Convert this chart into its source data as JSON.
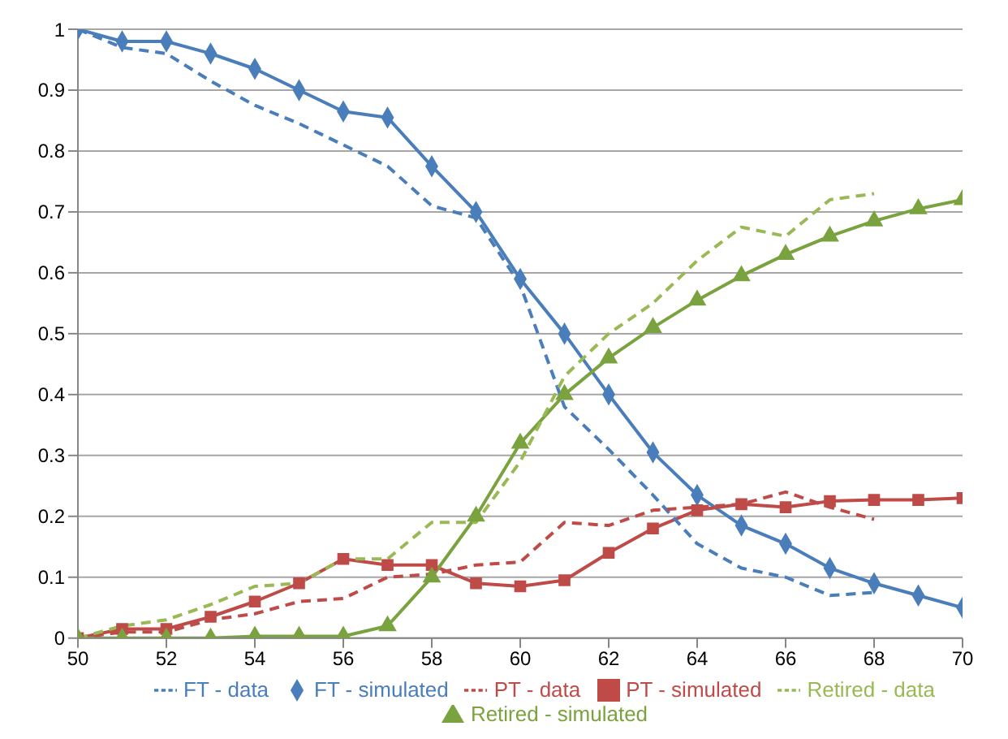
{
  "chart_data": {
    "type": "line",
    "x": [
      50,
      51,
      52,
      53,
      54,
      55,
      56,
      57,
      58,
      59,
      60,
      61,
      62,
      63,
      64,
      65,
      66,
      67,
      68,
      69,
      70
    ],
    "xlim": [
      50,
      70
    ],
    "xticks": [
      50,
      52,
      54,
      56,
      58,
      60,
      62,
      64,
      66,
      68,
      70
    ],
    "ylim": [
      0,
      1
    ],
    "yticks": [
      0,
      0.1,
      0.2,
      0.3,
      0.4,
      0.5,
      0.6,
      0.7,
      0.8,
      0.9,
      1
    ],
    "grid": "y",
    "legend": "bottom",
    "series": [
      {
        "name": "FT - simulated",
        "color": "#4a7ebb",
        "marker": "diamond",
        "line_style": "solid",
        "values": [
          1,
          0.98,
          0.98,
          0.96,
          0.935,
          0.9,
          0.865,
          0.855,
          0.775,
          0.7,
          0.59,
          0.5,
          0.4,
          0.305,
          0.235,
          0.185,
          0.155,
          0.115,
          0.09,
          0.07,
          0.05
        ]
      },
      {
        "name": "PT - simulated",
        "color": "#be4b48",
        "marker": "square",
        "line_style": "solid",
        "values": [
          0,
          0.015,
          0.015,
          0.035,
          0.06,
          0.09,
          0.13,
          0.12,
          0.12,
          0.09,
          0.085,
          0.095,
          0.14,
          0.18,
          0.21,
          0.22,
          0.215,
          0.225,
          0.227,
          0.227,
          0.23
        ]
      },
      {
        "name": "Retired - simulated",
        "color": "#7aa23f",
        "marker": "triangle",
        "line_style": "solid",
        "values": [
          0,
          0,
          0,
          0,
          0.003,
          0.003,
          0.003,
          0.02,
          0.1,
          0.2,
          0.32,
          0.4,
          0.46,
          0.51,
          0.555,
          0.595,
          0.63,
          0.66,
          0.685,
          0.705,
          0.72
        ]
      },
      {
        "name": "FT - data",
        "color": "#4a7ebb",
        "marker": "none",
        "line_style": "dashed",
        "x": [
          50,
          51,
          52,
          53,
          54,
          55,
          56,
          57,
          58,
          59,
          60,
          61,
          62,
          63,
          64,
          65,
          66,
          67,
          68
        ],
        "values": [
          1,
          0.97,
          0.96,
          0.915,
          0.875,
          0.845,
          0.81,
          0.775,
          0.71,
          0.69,
          0.58,
          0.38,
          0.31,
          0.235,
          0.155,
          0.115,
          0.1,
          0.07,
          0.075
        ]
      },
      {
        "name": "PT - data",
        "color": "#be4b48",
        "marker": "none",
        "line_style": "dashed",
        "x": [
          50,
          51,
          52,
          53,
          54,
          55,
          56,
          57,
          58,
          59,
          60,
          61,
          62,
          63,
          64,
          65,
          66,
          67,
          68
        ],
        "values": [
          0,
          0.01,
          0.01,
          0.03,
          0.04,
          0.06,
          0.065,
          0.1,
          0.105,
          0.12,
          0.125,
          0.19,
          0.185,
          0.21,
          0.215,
          0.22,
          0.24,
          0.215,
          0.195
        ]
      },
      {
        "name": "Retired - data",
        "color": "#98b954",
        "marker": "none",
        "line_style": "dashed",
        "x": [
          50,
          51,
          52,
          53,
          54,
          55,
          56,
          57,
          58,
          59,
          60,
          61,
          62,
          63,
          64,
          65,
          66,
          67,
          68
        ],
        "values": [
          0,
          0.02,
          0.03,
          0.055,
          0.085,
          0.09,
          0.13,
          0.13,
          0.19,
          0.19,
          0.29,
          0.43,
          0.5,
          0.55,
          0.62,
          0.675,
          0.66,
          0.72,
          0.73
        ]
      }
    ]
  }
}
